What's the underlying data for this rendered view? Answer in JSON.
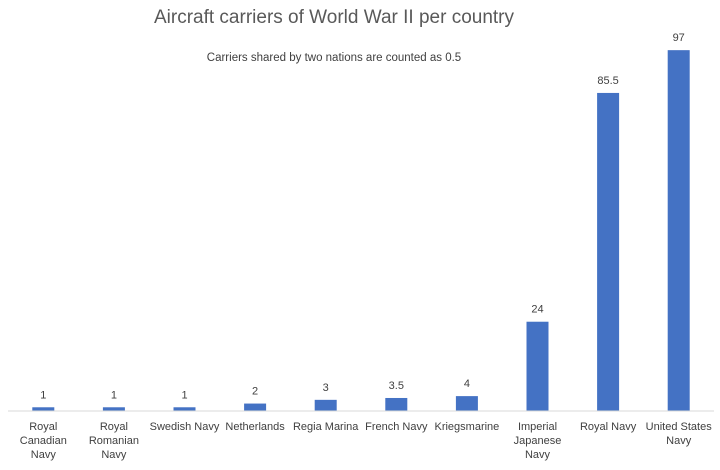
{
  "chart_data": {
    "type": "bar",
    "title": "Aircraft carriers of World War II per country",
    "subtitle": "Carriers shared by two nations are counted as 0.5",
    "categories": [
      "Royal Canadian Navy",
      "Royal Romanian Navy",
      "Swedish Navy",
      "Netherlands",
      "Regia Marina",
      "French Navy",
      "Kriegsmarine",
      "Imperial Japanese Navy",
      "Royal Navy",
      "United States Navy"
    ],
    "values": [
      1,
      1,
      1,
      2,
      3,
      3.5,
      4,
      24,
      85.5,
      97
    ],
    "data_labels": [
      "1",
      "1",
      "1",
      "2",
      "3",
      "3.5",
      "4",
      "24",
      "85.5",
      "97"
    ],
    "xlabel": "",
    "ylabel": "",
    "ylim": [
      0,
      100
    ],
    "grid": false,
    "legend": "none",
    "colors": {
      "bar": "#4472C4",
      "axis": "#D9D9D9"
    }
  }
}
